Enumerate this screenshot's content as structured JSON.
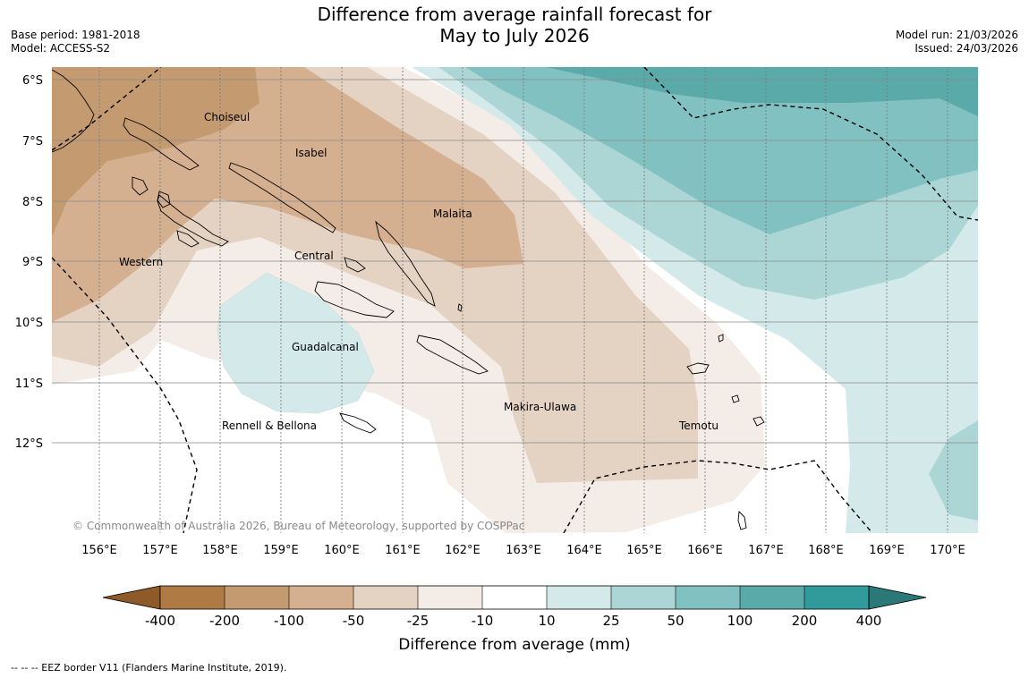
{
  "title": {
    "line1": "Difference from average rainfall forecast for",
    "line2": "May to July 2026"
  },
  "meta": {
    "base_period": "Base period: 1981-2018",
    "model": "Model: ACCESS-S2",
    "model_run": "Model run: 21/03/2026",
    "issued": "Issued: 24/03/2026"
  },
  "map": {
    "lat_labels": [
      "6°S",
      "7°S",
      "8°S",
      "9°S",
      "10°S",
      "11°S",
      "12°S"
    ],
    "lon_labels": [
      "156°E",
      "157°E",
      "158°E",
      "159°E",
      "160°E",
      "161°E",
      "162°E",
      "163°E",
      "164°E",
      "165°E",
      "166°E",
      "167°E",
      "168°E",
      "169°E",
      "170°E"
    ],
    "regions": [
      "Choiseul",
      "Isabel",
      "Malaita",
      "Western",
      "Central",
      "Guadalcanal",
      "Rennell & Bellona",
      "Makira-Ulawa",
      "Temotu"
    ],
    "copyright": "© Commonwealth of Australia 2026, Bureau of Meteorology, supported by COSPPac"
  },
  "colorbar": {
    "ticks": [
      "-400",
      "-200",
      "-100",
      "-50",
      "-25",
      "-10",
      "10",
      "25",
      "50",
      "100",
      "200",
      "400"
    ],
    "colors": [
      "#8f5a2a",
      "#b07a45",
      "#c49a70",
      "#d4b090",
      "#e4d3c3",
      "#f4ece6",
      "#ffffff",
      "#d4e9e9",
      "#acd6d6",
      "#82c1c1",
      "#5aaaaa",
      "#319b9b",
      "#2a7878"
    ],
    "title": "Difference from average (mm)"
  },
  "footer": "--  --  -- EEZ border V11 (Flanders Marine Institute, 2019)."
}
